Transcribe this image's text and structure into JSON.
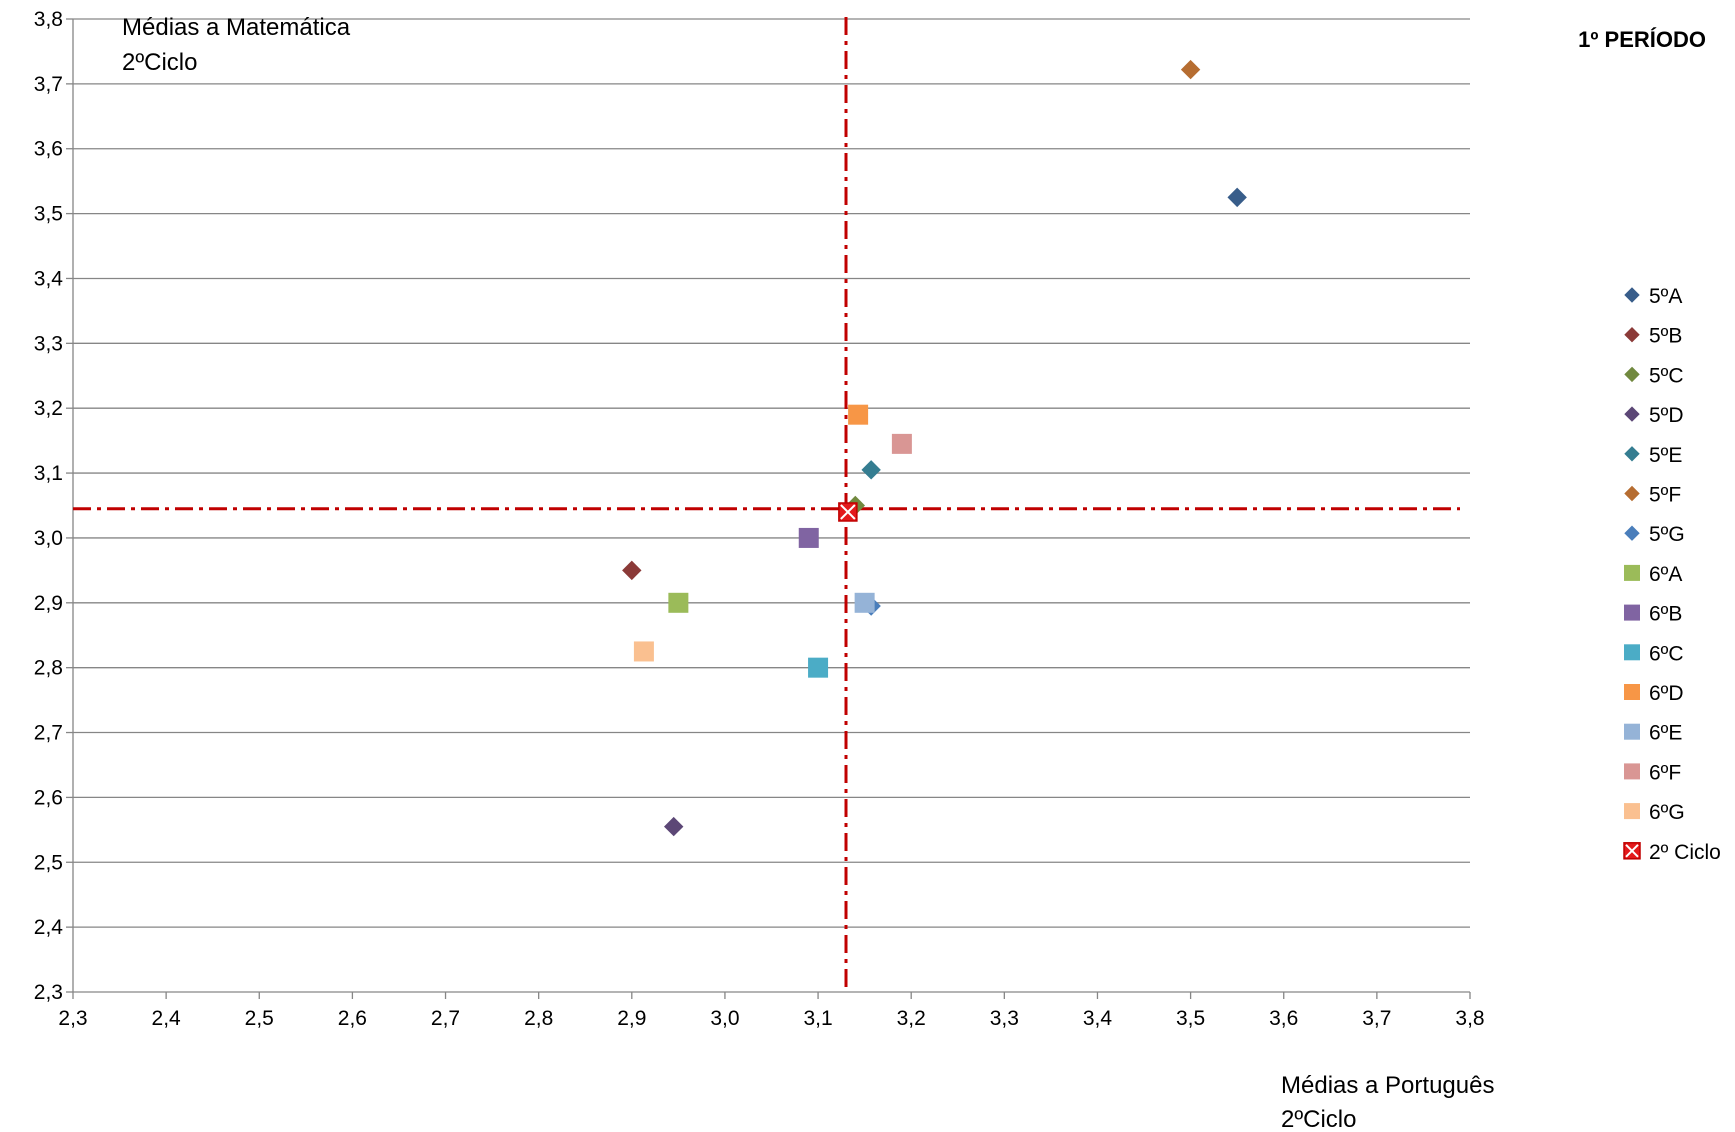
{
  "chart_data": {
    "type": "scatter",
    "title": "1º PERÍODO",
    "xlabel": [
      "Médias a  Português",
      "2ºCiclo"
    ],
    "ylabel": [
      "Médias a Matemática",
      "2ºCiclo"
    ],
    "xlim": [
      2.3,
      3.8
    ],
    "ylim": [
      2.3,
      3.8
    ],
    "x_ticks": [
      "2,3",
      "2,4",
      "2,5",
      "2,6",
      "2,7",
      "2,8",
      "2,9",
      "3,0",
      "3,1",
      "3,2",
      "3,3",
      "3,4",
      "3,5",
      "3,6",
      "3,7",
      "3,8"
    ],
    "y_ticks": [
      "2,3",
      "2,4",
      "2,5",
      "2,6",
      "2,7",
      "2,8",
      "2,9",
      "3,0",
      "3,1",
      "3,2",
      "3,3",
      "3,4",
      "3,5",
      "3,6",
      "3,7",
      "3,8"
    ],
    "grid": "horizontal",
    "legend_position": "right",
    "reference_lines": {
      "x": 3.13,
      "y": 3.045,
      "color": "#c00000",
      "style": "dash-dot"
    },
    "series": [
      {
        "name": "5ºA",
        "marker": "diamond",
        "color": "#385d8a",
        "x": 3.55,
        "y": 3.525
      },
      {
        "name": "5ºB",
        "marker": "diamond",
        "color": "#8b3a38",
        "x": 2.9,
        "y": 2.95
      },
      {
        "name": "5ºC",
        "marker": "diamond",
        "color": "#71893f",
        "x": 3.14,
        "y": 3.05
      },
      {
        "name": "5ºD",
        "marker": "diamond",
        "color": "#5c4776",
        "x": 2.945,
        "y": 2.555
      },
      {
        "name": "5ºE",
        "marker": "diamond",
        "color": "#357d91",
        "x": 3.157,
        "y": 3.105
      },
      {
        "name": "5ºF",
        "marker": "diamond",
        "color": "#b66d31",
        "x": 3.5,
        "y": 3.722
      },
      {
        "name": "5ºG",
        "marker": "diamond",
        "color": "#4a7ebb",
        "x": 3.157,
        "y": 2.895
      },
      {
        "name": "6ºA",
        "marker": "square",
        "color": "#9bbb59",
        "x": 2.95,
        "y": 2.9
      },
      {
        "name": "6ºB",
        "marker": "square",
        "color": "#8064a2",
        "x": 3.09,
        "y": 3.0
      },
      {
        "name": "6ºC",
        "marker": "square",
        "color": "#4bacc6",
        "x": 3.1,
        "y": 2.8
      },
      {
        "name": "6ºD",
        "marker": "square",
        "color": "#f79646",
        "x": 3.143,
        "y": 3.19
      },
      {
        "name": "6ºE",
        "marker": "square",
        "color": "#95b3d7",
        "x": 3.15,
        "y": 2.9
      },
      {
        "name": "6ºF",
        "marker": "square",
        "color": "#d99694",
        "x": 3.19,
        "y": 3.145
      },
      {
        "name": "6ºG",
        "marker": "square",
        "color": "#fac090",
        "x": 2.913,
        "y": 2.825
      },
      {
        "name": "2º Ciclo",
        "marker": "x-square",
        "color": "#e31a1c",
        "x": 3.132,
        "y": 3.04
      }
    ]
  }
}
